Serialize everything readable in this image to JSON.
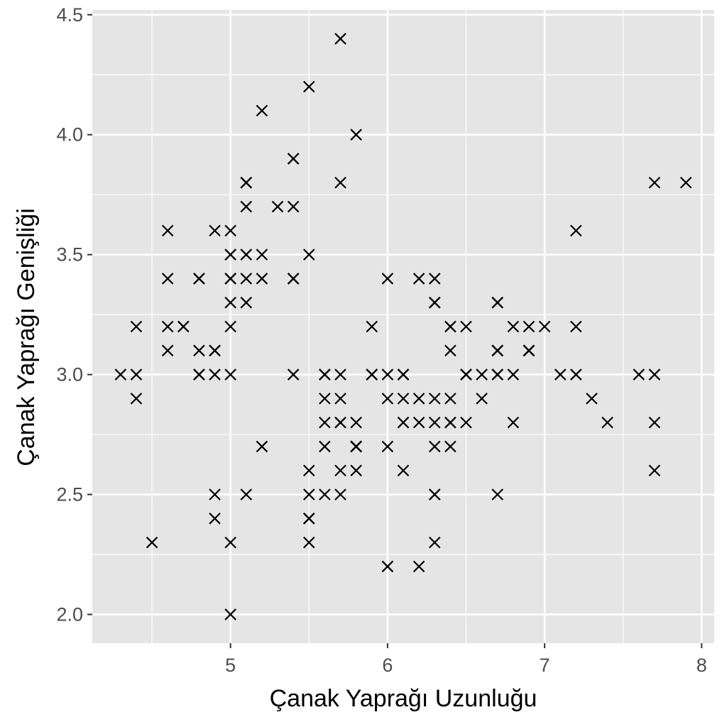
{
  "chart_data": {
    "type": "scatter",
    "title": "",
    "xlabel": "Çanak Yaprağı Uzunluğu",
    "ylabel": "Çanak Yaprağı Genişliği",
    "xlim": [
      4.12,
      8.08
    ],
    "ylim": [
      1.88,
      4.52
    ],
    "x_ticks": [
      5,
      6,
      7,
      8
    ],
    "x_tick_labels": [
      "5",
      "6",
      "7",
      "8"
    ],
    "y_ticks": [
      2.0,
      2.5,
      3.0,
      3.5,
      4.0,
      4.5
    ],
    "y_tick_labels": [
      "2.0",
      "2.5",
      "3.0",
      "3.5",
      "4.0",
      "4.5"
    ],
    "grid": true,
    "marker": "x",
    "colors": {
      "panel": "#e5e5e5",
      "grid": "#ffffff",
      "marker": "#000000",
      "tick_text": "#4d4d4d",
      "tick_mark": "#333333"
    },
    "points": [
      [
        5.1,
        3.5
      ],
      [
        4.9,
        3.0
      ],
      [
        4.7,
        3.2
      ],
      [
        4.6,
        3.1
      ],
      [
        5.0,
        3.6
      ],
      [
        5.4,
        3.9
      ],
      [
        4.6,
        3.4
      ],
      [
        5.0,
        3.4
      ],
      [
        4.4,
        2.9
      ],
      [
        4.9,
        3.1
      ],
      [
        5.4,
        3.7
      ],
      [
        4.8,
        3.4
      ],
      [
        4.8,
        3.0
      ],
      [
        4.3,
        3.0
      ],
      [
        5.8,
        4.0
      ],
      [
        5.7,
        4.4
      ],
      [
        5.4,
        3.9
      ],
      [
        5.1,
        3.5
      ],
      [
        5.7,
        3.8
      ],
      [
        5.1,
        3.8
      ],
      [
        5.4,
        3.4
      ],
      [
        5.1,
        3.7
      ],
      [
        4.6,
        3.6
      ],
      [
        5.1,
        3.3
      ],
      [
        4.8,
        3.4
      ],
      [
        5.0,
        3.0
      ],
      [
        5.0,
        3.4
      ],
      [
        5.2,
        3.5
      ],
      [
        5.2,
        3.4
      ],
      [
        4.7,
        3.2
      ],
      [
        4.8,
        3.1
      ],
      [
        5.4,
        3.4
      ],
      [
        5.2,
        4.1
      ],
      [
        5.5,
        4.2
      ],
      [
        4.9,
        3.1
      ],
      [
        5.0,
        3.2
      ],
      [
        5.5,
        3.5
      ],
      [
        4.9,
        3.6
      ],
      [
        4.4,
        3.0
      ],
      [
        5.1,
        3.4
      ],
      [
        5.0,
        3.5
      ],
      [
        4.5,
        2.3
      ],
      [
        4.4,
        3.2
      ],
      [
        5.0,
        3.5
      ],
      [
        5.1,
        3.8
      ],
      [
        4.8,
        3.0
      ],
      [
        5.1,
        3.8
      ],
      [
        4.6,
        3.2
      ],
      [
        5.3,
        3.7
      ],
      [
        5.0,
        3.3
      ],
      [
        7.0,
        3.2
      ],
      [
        6.4,
        3.2
      ],
      [
        6.9,
        3.1
      ],
      [
        5.5,
        2.3
      ],
      [
        6.5,
        2.8
      ],
      [
        5.7,
        2.8
      ],
      [
        6.3,
        3.3
      ],
      [
        4.9,
        2.4
      ],
      [
        6.6,
        2.9
      ],
      [
        5.2,
        2.7
      ],
      [
        5.0,
        2.0
      ],
      [
        5.9,
        3.0
      ],
      [
        6.0,
        2.2
      ],
      [
        6.1,
        2.9
      ],
      [
        5.6,
        2.9
      ],
      [
        6.7,
        3.1
      ],
      [
        5.6,
        3.0
      ],
      [
        5.8,
        2.7
      ],
      [
        6.2,
        2.2
      ],
      [
        5.6,
        2.5
      ],
      [
        5.9,
        3.2
      ],
      [
        6.1,
        2.8
      ],
      [
        6.3,
        2.5
      ],
      [
        6.1,
        2.8
      ],
      [
        6.4,
        2.9
      ],
      [
        6.6,
        3.0
      ],
      [
        6.8,
        2.8
      ],
      [
        6.7,
        3.0
      ],
      [
        6.0,
        2.9
      ],
      [
        5.7,
        2.6
      ],
      [
        5.5,
        2.4
      ],
      [
        5.5,
        2.4
      ],
      [
        5.8,
        2.7
      ],
      [
        6.0,
        2.7
      ],
      [
        5.4,
        3.0
      ],
      [
        6.0,
        3.4
      ],
      [
        6.7,
        3.1
      ],
      [
        6.3,
        2.3
      ],
      [
        5.6,
        3.0
      ],
      [
        5.5,
        2.5
      ],
      [
        5.5,
        2.6
      ],
      [
        6.1,
        3.0
      ],
      [
        5.8,
        2.6
      ],
      [
        5.0,
        2.3
      ],
      [
        5.6,
        2.7
      ],
      [
        5.7,
        3.0
      ],
      [
        5.7,
        2.9
      ],
      [
        6.2,
        2.9
      ],
      [
        5.1,
        2.5
      ],
      [
        5.7,
        2.8
      ],
      [
        6.3,
        3.3
      ],
      [
        5.8,
        2.7
      ],
      [
        7.1,
        3.0
      ],
      [
        6.3,
        2.9
      ],
      [
        6.5,
        3.0
      ],
      [
        7.6,
        3.0
      ],
      [
        4.9,
        2.5
      ],
      [
        7.3,
        2.9
      ],
      [
        6.7,
        2.5
      ],
      [
        7.2,
        3.6
      ],
      [
        6.5,
        3.2
      ],
      [
        6.4,
        2.7
      ],
      [
        6.8,
        3.0
      ],
      [
        5.7,
        2.5
      ],
      [
        5.8,
        2.8
      ],
      [
        6.4,
        3.2
      ],
      [
        6.5,
        3.0
      ],
      [
        7.7,
        3.8
      ],
      [
        7.7,
        2.6
      ],
      [
        6.0,
        2.2
      ],
      [
        6.9,
        3.2
      ],
      [
        5.6,
        2.8
      ],
      [
        7.7,
        2.8
      ],
      [
        6.3,
        2.7
      ],
      [
        6.7,
        3.3
      ],
      [
        7.2,
        3.2
      ],
      [
        6.2,
        2.8
      ],
      [
        6.1,
        3.0
      ],
      [
        6.4,
        2.8
      ],
      [
        7.2,
        3.0
      ],
      [
        7.4,
        2.8
      ],
      [
        7.9,
        3.8
      ],
      [
        6.4,
        2.8
      ],
      [
        6.3,
        2.8
      ],
      [
        6.1,
        2.6
      ],
      [
        7.7,
        3.0
      ],
      [
        6.3,
        3.4
      ],
      [
        6.4,
        3.1
      ],
      [
        6.0,
        3.0
      ],
      [
        6.9,
        3.1
      ],
      [
        6.7,
        3.1
      ],
      [
        6.9,
        3.1
      ],
      [
        5.8,
        2.7
      ],
      [
        6.8,
        3.2
      ],
      [
        6.7,
        3.3
      ],
      [
        6.7,
        3.0
      ],
      [
        6.3,
        2.5
      ],
      [
        6.5,
        3.0
      ],
      [
        6.2,
        3.4
      ],
      [
        5.9,
        3.0
      ]
    ]
  }
}
